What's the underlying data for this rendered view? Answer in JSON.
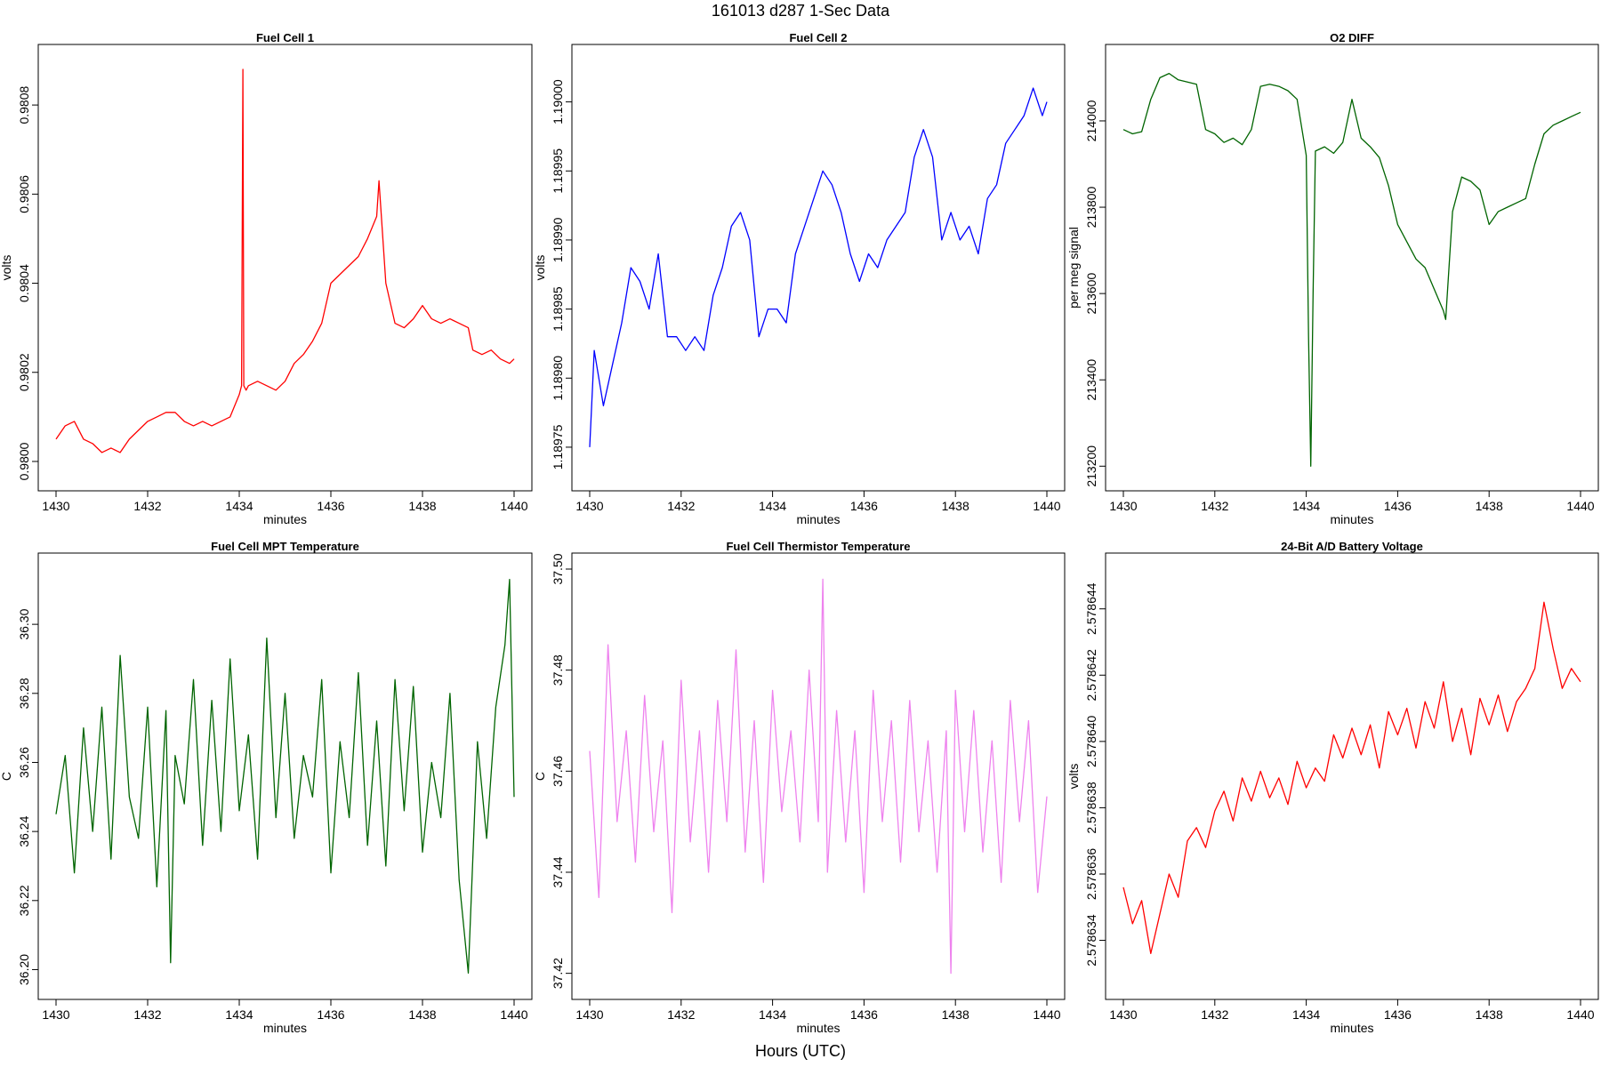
{
  "figure": {
    "title": "161013   d287   1-Sec Data",
    "outer_xlabel": "Hours (UTC)"
  },
  "chart_data": [
    {
      "type": "line",
      "title": "Fuel Cell 1",
      "xlabel": "minutes",
      "ylabel": "volts",
      "color": "#ff0000",
      "xlim": [
        1430,
        1440
      ],
      "ylim": [
        0.97997,
        0.9809
      ],
      "xticks": [
        1430,
        1432,
        1434,
        1436,
        1438,
        1440
      ],
      "yticks": [
        0.98,
        0.9802,
        0.9804,
        0.9806,
        0.9808
      ],
      "ytick_labels": [
        "0.9800",
        "0.9802",
        "0.9804",
        "0.9806",
        "0.9808"
      ],
      "series": [
        {
          "x": [
            1430.0,
            1430.2,
            1430.4,
            1430.6,
            1430.8,
            1431.0,
            1431.2,
            1431.4,
            1431.6,
            1431.8,
            1432.0,
            1432.2,
            1432.4,
            1432.6,
            1432.8,
            1433.0,
            1433.2,
            1433.4,
            1433.6,
            1433.8,
            1434.0,
            1434.05,
            1434.08,
            1434.1,
            1434.15,
            1434.2,
            1434.4,
            1434.6,
            1434.8,
            1435.0,
            1435.2,
            1435.4,
            1435.6,
            1435.8,
            1436.0,
            1436.2,
            1436.4,
            1436.6,
            1436.8,
            1437.0,
            1437.05,
            1437.2,
            1437.4,
            1437.6,
            1437.8,
            1438.0,
            1438.2,
            1438.4,
            1438.6,
            1438.8,
            1439.0,
            1439.1,
            1439.3,
            1439.5,
            1439.7,
            1439.9,
            1440.0
          ],
          "y": [
            0.98005,
            0.98008,
            0.98009,
            0.98005,
            0.98004,
            0.98002,
            0.98003,
            0.98002,
            0.98005,
            0.98007,
            0.98009,
            0.9801,
            0.98011,
            0.98011,
            0.98009,
            0.98008,
            0.98009,
            0.98008,
            0.98009,
            0.9801,
            0.98015,
            0.98017,
            0.98088,
            0.98017,
            0.98016,
            0.98017,
            0.98018,
            0.98017,
            0.98016,
            0.98018,
            0.98022,
            0.98024,
            0.98027,
            0.98031,
            0.9804,
            0.98042,
            0.98044,
            0.98046,
            0.9805,
            0.98055,
            0.98063,
            0.9804,
            0.98031,
            0.9803,
            0.98032,
            0.98035,
            0.98032,
            0.98031,
            0.98032,
            0.98031,
            0.9803,
            0.98025,
            0.98024,
            0.98025,
            0.98023,
            0.98022,
            0.98023
          ]
        }
      ]
    },
    {
      "type": "line",
      "title": "Fuel Cell 2",
      "xlabel": "minutes",
      "ylabel": "volts",
      "color": "#0000ff",
      "xlim": [
        1430,
        1440
      ],
      "ylim": [
        1.18973,
        1.19003
      ],
      "xticks": [
        1430,
        1432,
        1434,
        1436,
        1438,
        1440
      ],
      "yticks": [
        1.18975,
        1.1898,
        1.18985,
        1.1899,
        1.18995,
        1.19
      ],
      "ytick_labels": [
        "1.18975",
        "1.18980",
        "1.18985",
        "1.18990",
        "1.18995",
        "1.19000"
      ],
      "series": [
        {
          "x": [
            1430.0,
            1430.1,
            1430.3,
            1430.5,
            1430.7,
            1430.9,
            1431.1,
            1431.3,
            1431.5,
            1431.7,
            1431.9,
            1432.1,
            1432.3,
            1432.5,
            1432.7,
            1432.9,
            1433.1,
            1433.3,
            1433.5,
            1433.7,
            1433.9,
            1434.1,
            1434.3,
            1434.5,
            1434.7,
            1434.9,
            1435.1,
            1435.3,
            1435.5,
            1435.7,
            1435.9,
            1436.1,
            1436.3,
            1436.5,
            1436.7,
            1436.9,
            1437.1,
            1437.3,
            1437.5,
            1437.7,
            1437.9,
            1438.1,
            1438.3,
            1438.5,
            1438.7,
            1438.9,
            1439.1,
            1439.3,
            1439.5,
            1439.7,
            1439.9,
            1440.0
          ],
          "y": [
            1.18975,
            1.18982,
            1.18978,
            1.18981,
            1.18984,
            1.18988,
            1.18987,
            1.18985,
            1.18989,
            1.18983,
            1.18983,
            1.18982,
            1.18983,
            1.18982,
            1.18986,
            1.18988,
            1.18991,
            1.18992,
            1.1899,
            1.18983,
            1.18985,
            1.18985,
            1.18984,
            1.18989,
            1.18991,
            1.18993,
            1.18995,
            1.18994,
            1.18992,
            1.18989,
            1.18987,
            1.18989,
            1.18988,
            1.1899,
            1.18991,
            1.18992,
            1.18996,
            1.18998,
            1.18996,
            1.1899,
            1.18992,
            1.1899,
            1.18991,
            1.18989,
            1.18993,
            1.18994,
            1.18997,
            1.18998,
            1.18999,
            1.19001,
            1.18999,
            1.19
          ]
        }
      ]
    },
    {
      "type": "line",
      "title": "O2 DIFF",
      "xlabel": "minutes",
      "ylabel": "per meg signal",
      "color": "#006400",
      "xlim": [
        1430,
        1440
      ],
      "ylim": [
        213180,
        214140
      ],
      "xticks": [
        1430,
        1432,
        1434,
        1436,
        1438,
        1440
      ],
      "yticks": [
        213200,
        213400,
        213600,
        213800,
        214000
      ],
      "ytick_labels": [
        "213200",
        "213400",
        "213600",
        "213800",
        "214000"
      ],
      "series": [
        {
          "x": [
            1430.0,
            1430.2,
            1430.4,
            1430.6,
            1430.8,
            1431.0,
            1431.2,
            1431.4,
            1431.6,
            1431.8,
            1432.0,
            1432.2,
            1432.4,
            1432.6,
            1432.8,
            1433.0,
            1433.2,
            1433.4,
            1433.6,
            1433.8,
            1434.0,
            1434.05,
            1434.1,
            1434.15,
            1434.2,
            1434.4,
            1434.6,
            1434.8,
            1435.0,
            1435.2,
            1435.4,
            1435.6,
            1435.8,
            1436.0,
            1436.2,
            1436.4,
            1436.6,
            1436.8,
            1437.0,
            1437.05,
            1437.2,
            1437.4,
            1437.6,
            1437.8,
            1438.0,
            1438.2,
            1438.4,
            1438.6,
            1438.8,
            1439.0,
            1439.2,
            1439.4,
            1439.6,
            1439.8,
            1440.0
          ],
          "y": [
            213980,
            213970,
            213975,
            214050,
            214100,
            214110,
            214095,
            214090,
            214085,
            213980,
            213970,
            213950,
            213960,
            213945,
            213980,
            214080,
            214085,
            214080,
            214070,
            214050,
            213920,
            213500,
            213200,
            213600,
            213930,
            213940,
            213925,
            213950,
            214050,
            213960,
            213940,
            213915,
            213850,
            213760,
            213720,
            213680,
            213660,
            213610,
            213560,
            213540,
            213790,
            213870,
            213860,
            213840,
            213760,
            213790,
            213800,
            213810,
            213820,
            213900,
            213970,
            213990,
            214000,
            214010,
            214020
          ]
        }
      ]
    },
    {
      "type": "line",
      "title": "Fuel Cell MPT Temperature",
      "xlabel": "minutes",
      "ylabel": "C",
      "color": "#006400",
      "xlim": [
        1430,
        1440
      ],
      "ylim": [
        36.196,
        36.316
      ],
      "xticks": [
        1430,
        1432,
        1434,
        1436,
        1438,
        1440
      ],
      "yticks": [
        36.2,
        36.22,
        36.24,
        36.26,
        36.28,
        36.3
      ],
      "ytick_labels": [
        "36.20",
        "36.22",
        "36.24",
        "36.26",
        "36.28",
        "36.30"
      ],
      "series": [
        {
          "x": [
            1430.0,
            1430.2,
            1430.4,
            1430.6,
            1430.8,
            1431.0,
            1431.2,
            1431.4,
            1431.6,
            1431.8,
            1432.0,
            1432.2,
            1432.4,
            1432.5,
            1432.6,
            1432.8,
            1433.0,
            1433.2,
            1433.4,
            1433.6,
            1433.8,
            1434.0,
            1434.2,
            1434.4,
            1434.6,
            1434.8,
            1435.0,
            1435.2,
            1435.4,
            1435.6,
            1435.8,
            1436.0,
            1436.2,
            1436.4,
            1436.6,
            1436.8,
            1437.0,
            1437.2,
            1437.4,
            1437.6,
            1437.8,
            1438.0,
            1438.2,
            1438.4,
            1438.6,
            1438.8,
            1439.0,
            1439.2,
            1439.4,
            1439.6,
            1439.8,
            1439.9,
            1440.0
          ],
          "y": [
            36.245,
            36.262,
            36.228,
            36.27,
            36.24,
            36.276,
            36.232,
            36.291,
            36.25,
            36.238,
            36.276,
            36.224,
            36.275,
            36.202,
            36.262,
            36.248,
            36.284,
            36.236,
            36.278,
            36.24,
            36.29,
            36.246,
            36.268,
            36.232,
            36.296,
            36.244,
            36.28,
            36.238,
            36.262,
            36.25,
            36.284,
            36.228,
            36.266,
            36.244,
            36.286,
            36.236,
            36.272,
            36.23,
            36.284,
            36.246,
            36.282,
            36.234,
            36.26,
            36.244,
            36.28,
            36.226,
            36.199,
            36.266,
            36.238,
            36.276,
            36.294,
            36.313,
            36.25
          ]
        }
      ]
    },
    {
      "type": "line",
      "title": "Fuel Cell Thermistor Temperature",
      "xlabel": "minutes",
      "ylabel": "C",
      "color": "#ee82ee",
      "xlim": [
        1430,
        1440
      ],
      "ylim": [
        37.418,
        37.5
      ],
      "xticks": [
        1430,
        1432,
        1434,
        1436,
        1438,
        1440
      ],
      "yticks": [
        37.42,
        37.44,
        37.46,
        37.48,
        37.5
      ],
      "ytick_labels": [
        "37.42",
        "37.44",
        "37.46",
        "37.48",
        "37.50"
      ],
      "series": [
        {
          "x": [
            1430.0,
            1430.2,
            1430.4,
            1430.6,
            1430.8,
            1431.0,
            1431.2,
            1431.4,
            1431.6,
            1431.8,
            1432.0,
            1432.2,
            1432.4,
            1432.6,
            1432.8,
            1433.0,
            1433.2,
            1433.4,
            1433.6,
            1433.8,
            1434.0,
            1434.2,
            1434.4,
            1434.6,
            1434.8,
            1435.0,
            1435.1,
            1435.2,
            1435.4,
            1435.6,
            1435.8,
            1436.0,
            1436.2,
            1436.4,
            1436.6,
            1436.8,
            1437.0,
            1437.2,
            1437.4,
            1437.6,
            1437.8,
            1437.9,
            1438.0,
            1438.2,
            1438.4,
            1438.6,
            1438.8,
            1439.0,
            1439.2,
            1439.4,
            1439.6,
            1439.8,
            1440.0
          ],
          "y": [
            37.464,
            37.435,
            37.485,
            37.45,
            37.468,
            37.442,
            37.475,
            37.448,
            37.466,
            37.432,
            37.478,
            37.446,
            37.468,
            37.44,
            37.474,
            37.45,
            37.484,
            37.444,
            37.47,
            37.438,
            37.476,
            37.452,
            37.468,
            37.446,
            37.48,
            37.45,
            37.498,
            37.44,
            37.472,
            37.446,
            37.468,
            37.436,
            37.476,
            37.45,
            37.47,
            37.442,
            37.474,
            37.448,
            37.466,
            37.44,
            37.468,
            37.42,
            37.476,
            37.448,
            37.472,
            37.444,
            37.466,
            37.438,
            37.474,
            37.45,
            37.47,
            37.436,
            37.455
          ]
        }
      ]
    },
    {
      "type": "line",
      "title": "24-Bit A/D Battery Voltage",
      "xlabel": "minutes",
      "ylabel": "volts",
      "color": "#ff0000",
      "xlim": [
        1430,
        1440
      ],
      "ylim": [
        2.5786327,
        2.5786452
      ],
      "xticks": [
        1430,
        1432,
        1434,
        1436,
        1438,
        1440
      ],
      "yticks": [
        2.578634,
        2.578636,
        2.578638,
        2.57864,
        2.578642,
        2.578644
      ],
      "ytick_labels": [
        "2.578634",
        "2.578636",
        "2.578638",
        "2.578640",
        "2.578642",
        "2.578644"
      ],
      "series": [
        {
          "x": [
            1430.0,
            1430.2,
            1430.4,
            1430.6,
            1430.8,
            1431.0,
            1431.2,
            1431.4,
            1431.6,
            1431.8,
            1432.0,
            1432.2,
            1432.4,
            1432.6,
            1432.8,
            1433.0,
            1433.2,
            1433.4,
            1433.6,
            1433.8,
            1434.0,
            1434.2,
            1434.4,
            1434.6,
            1434.8,
            1435.0,
            1435.2,
            1435.4,
            1435.6,
            1435.8,
            1436.0,
            1436.2,
            1436.4,
            1436.6,
            1436.8,
            1437.0,
            1437.2,
            1437.4,
            1437.6,
            1437.8,
            1438.0,
            1438.2,
            1438.4,
            1438.6,
            1438.8,
            1439.0,
            1439.2,
            1439.4,
            1439.6,
            1439.8,
            1440.0
          ],
          "y": [
            2.5786356,
            2.5786345,
            2.5786352,
            2.5786336,
            2.5786348,
            2.578636,
            2.5786353,
            2.578637,
            2.5786374,
            2.5786368,
            2.5786379,
            2.5786385,
            2.5786376,
            2.5786389,
            2.5786382,
            2.5786391,
            2.5786383,
            2.5786389,
            2.5786381,
            2.5786394,
            2.5786386,
            2.5786392,
            2.5786388,
            2.5786402,
            2.5786395,
            2.5786404,
            2.5786396,
            2.5786405,
            2.5786392,
            2.5786409,
            2.5786402,
            2.578641,
            2.5786398,
            2.5786412,
            2.5786404,
            2.5786418,
            2.57864,
            2.578641,
            2.5786396,
            2.5786413,
            2.5786405,
            2.5786414,
            2.5786403,
            2.5786412,
            2.5786416,
            2.5786422,
            2.5786442,
            2.5786428,
            2.5786416,
            2.5786422,
            2.5786418
          ]
        }
      ]
    }
  ]
}
